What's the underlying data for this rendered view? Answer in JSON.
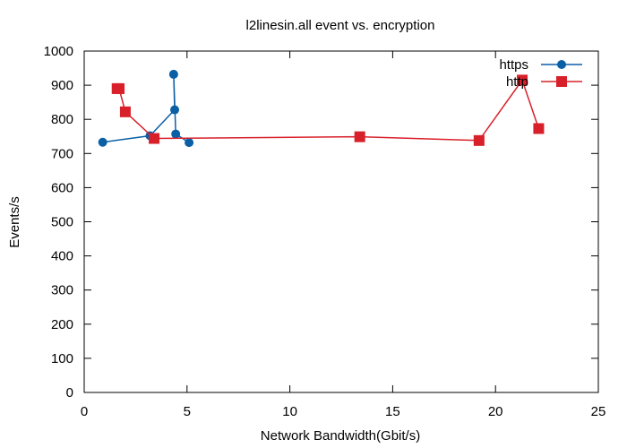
{
  "chart_data": {
    "type": "line",
    "title": "l2linesin.all event vs. encryption",
    "xlabel": "Network Bandwidth(Gbit/s)",
    "ylabel": "Events/s",
    "xlim": [
      0,
      25
    ],
    "ylim": [
      0,
      1000
    ],
    "xticks": [
      0,
      5,
      10,
      15,
      20,
      25
    ],
    "yticks": [
      0,
      100,
      200,
      300,
      400,
      500,
      600,
      700,
      800,
      900,
      1000
    ],
    "legend_position": "top-right",
    "grid": false,
    "series": [
      {
        "name": "https",
        "color": "#0b5fa5",
        "marker": "circle",
        "points": [
          {
            "x": 0.9,
            "y": 733
          },
          {
            "x": 3.2,
            "y": 752
          },
          {
            "x": 4.4,
            "y": 828
          },
          {
            "x": 4.35,
            "y": 932
          },
          {
            "x": 4.45,
            "y": 757
          },
          {
            "x": 5.1,
            "y": 732
          }
        ]
      },
      {
        "name": "http",
        "color": "#d8202a",
        "marker": "square",
        "points": [
          {
            "x": 1.6,
            "y": 890
          },
          {
            "x": 1.7,
            "y": 890
          },
          {
            "x": 2.0,
            "y": 822
          },
          {
            "x": 3.4,
            "y": 744
          },
          {
            "x": 13.4,
            "y": 749
          },
          {
            "x": 19.2,
            "y": 738
          },
          {
            "x": 21.3,
            "y": 915
          },
          {
            "x": 22.1,
            "y": 773
          }
        ]
      }
    ]
  }
}
